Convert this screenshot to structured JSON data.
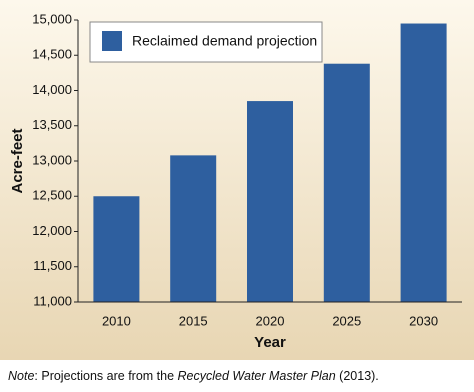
{
  "chart_data": {
    "type": "bar",
    "categories": [
      "2010",
      "2015",
      "2020",
      "2025",
      "2030"
    ],
    "series": [
      {
        "name": "Reclaimed demand projection",
        "color": "#2e5f9f",
        "values": [
          12500,
          13080,
          13850,
          14380,
          14950
        ]
      }
    ],
    "ylim": [
      11000,
      15000
    ],
    "yticks": [
      {
        "value": 11000,
        "label": "11,000"
      },
      {
        "value": 11500,
        "label": "11,500"
      },
      {
        "value": 12000,
        "label": "12,000"
      },
      {
        "value": 12500,
        "label": "12,500"
      },
      {
        "value": 13000,
        "label": "13,000"
      },
      {
        "value": 13500,
        "label": "13,500"
      },
      {
        "value": 14000,
        "label": "14,000"
      },
      {
        "value": 14500,
        "label": "14,500"
      },
      {
        "value": 15000,
        "label": "15,000"
      }
    ],
    "y_label": "Acre-feet",
    "x_label": "Year",
    "legend": "top-left",
    "grid": false,
    "note": [
      "Note",
      ": Projections are from the ",
      "Recycled Water Master Plan",
      " (2013)."
    ]
  }
}
